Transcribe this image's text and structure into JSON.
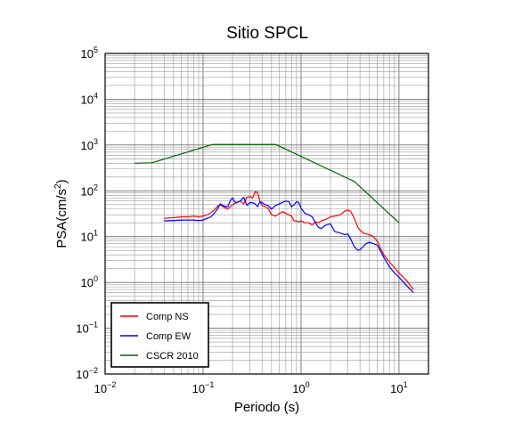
{
  "chart_data": {
    "type": "line",
    "title": "Sitio SPCL",
    "xlabel": "Periodo (s)",
    "ylabel_prefix": "PSA(cm/s",
    "ylabel_sup": "2",
    "ylabel_suffix": ")",
    "xscale": "log",
    "yscale": "log",
    "xlim": [
      0.01,
      20
    ],
    "ylim": [
      0.01,
      100000
    ],
    "grid": true,
    "legend_position": "bottom-left",
    "x_ticks": [
      {
        "value": 0.01,
        "base": "10",
        "exp": "−2"
      },
      {
        "value": 0.1,
        "base": "10",
        "exp": "−1"
      },
      {
        "value": 1,
        "base": "10",
        "exp": "0"
      },
      {
        "value": 10,
        "base": "10",
        "exp": "1"
      }
    ],
    "y_ticks": [
      {
        "value": 0.01,
        "base": "10",
        "exp": "−2"
      },
      {
        "value": 0.1,
        "base": "10",
        "exp": "−1"
      },
      {
        "value": 1,
        "base": "10",
        "exp": "0"
      },
      {
        "value": 10,
        "base": "10",
        "exp": "1"
      },
      {
        "value": 100,
        "base": "10",
        "exp": "2"
      },
      {
        "value": 1000,
        "base": "10",
        "exp": "3"
      },
      {
        "value": 10000,
        "base": "10",
        "exp": "4"
      },
      {
        "value": 100000,
        "base": "10",
        "exp": "5"
      }
    ],
    "series": [
      {
        "name": "Comp NS",
        "color": "#ff0000",
        "x": [
          0.04,
          0.05,
          0.06,
          0.07,
          0.08,
          0.09,
          0.1,
          0.11,
          0.12,
          0.13,
          0.14,
          0.15,
          0.16,
          0.17,
          0.18,
          0.2,
          0.22,
          0.24,
          0.26,
          0.28,
          0.3,
          0.32,
          0.34,
          0.36,
          0.38,
          0.4,
          0.43,
          0.46,
          0.5,
          0.55,
          0.6,
          0.65,
          0.7,
          0.75,
          0.8,
          0.85,
          0.9,
          0.95,
          1.0,
          1.1,
          1.2,
          1.3,
          1.4,
          1.5,
          1.6,
          1.8,
          2.0,
          2.2,
          2.5,
          2.8,
          3.0,
          3.2,
          3.5,
          3.8,
          4.0,
          4.3,
          4.6,
          5.0,
          5.5,
          6.0,
          6.5,
          7.0,
          8.0,
          9.0,
          10.0,
          12.0,
          14.0
        ],
        "y": [
          25,
          26,
          27,
          27,
          28,
          27,
          28,
          30,
          33,
          38,
          46,
          50,
          45,
          42,
          41,
          50,
          55,
          60,
          52,
          72,
          75,
          70,
          95,
          92,
          60,
          48,
          45,
          42,
          30,
          28,
          32,
          35,
          32,
          30,
          28,
          22,
          22,
          21,
          22,
          20,
          20,
          18,
          21,
          20,
          22,
          24,
          27,
          28,
          30,
          36,
          38,
          36,
          25,
          16,
          14,
          12,
          11.5,
          11,
          10,
          8,
          5.5,
          4,
          2.8,
          2.1,
          1.6,
          1.1,
          0.7
        ]
      },
      {
        "name": "Comp EW",
        "color": "#0000ff",
        "x": [
          0.04,
          0.05,
          0.06,
          0.07,
          0.08,
          0.09,
          0.1,
          0.11,
          0.12,
          0.13,
          0.14,
          0.15,
          0.16,
          0.17,
          0.18,
          0.19,
          0.2,
          0.21,
          0.22,
          0.24,
          0.26,
          0.28,
          0.3,
          0.32,
          0.34,
          0.36,
          0.38,
          0.4,
          0.43,
          0.46,
          0.5,
          0.55,
          0.6,
          0.65,
          0.7,
          0.75,
          0.8,
          0.85,
          0.9,
          0.95,
          1.0,
          1.1,
          1.2,
          1.3,
          1.4,
          1.5,
          1.6,
          1.8,
          2.0,
          2.2,
          2.5,
          2.8,
          3.0,
          3.2,
          3.5,
          3.8,
          4.0,
          4.3,
          4.6,
          5.0,
          5.5,
          6.0,
          6.5,
          7.0,
          8.0,
          9.0,
          10.0,
          12.0,
          14.0
        ],
        "y": [
          22,
          22.5,
          23,
          23,
          23,
          22.5,
          23,
          25,
          27,
          32,
          40,
          52,
          48,
          45,
          46,
          62,
          70,
          58,
          55,
          60,
          72,
          48,
          55,
          55,
          52,
          45,
          58,
          55,
          50,
          48,
          40,
          48,
          52,
          56,
          60,
          58,
          45,
          50,
          58,
          55,
          42,
          32,
          30,
          27,
          20,
          16,
          15,
          18,
          19,
          13,
          12,
          11,
          11.5,
          9,
          6,
          5,
          5.2,
          6,
          7,
          7.5,
          7,
          6.5,
          4.8,
          3.5,
          2.2,
          1.6,
          1.3,
          0.85,
          0.6
        ]
      },
      {
        "name": "CSCR 2010",
        "color": "#006400",
        "x": [
          0.02,
          0.03,
          0.125,
          0.55,
          3.5,
          10.0
        ],
        "y": [
          400,
          410,
          1030,
          1030,
          160,
          20
        ]
      }
    ]
  }
}
